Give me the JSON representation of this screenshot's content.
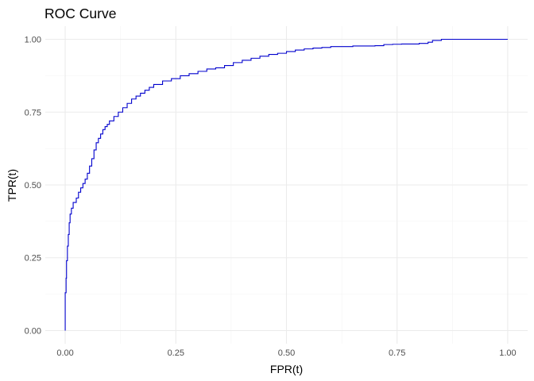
{
  "chart_data": {
    "type": "line",
    "title": "ROC Curve",
    "xlabel": "FPR(t)",
    "ylabel": "TPR(t)",
    "xlim": [
      0,
      1
    ],
    "ylim": [
      0,
      1
    ],
    "x_ticks": [
      "0.00",
      "0.25",
      "0.50",
      "0.75",
      "1.00"
    ],
    "y_ticks": [
      "0.00",
      "0.25",
      "0.50",
      "0.75",
      "1.00"
    ],
    "grid": true,
    "legend": "none",
    "line_color": "#0000cd",
    "series": [
      {
        "points": [
          [
            0.0,
            0.0
          ],
          [
            0.0,
            0.06
          ],
          [
            0.002,
            0.13
          ],
          [
            0.003,
            0.18
          ],
          [
            0.005,
            0.24
          ],
          [
            0.007,
            0.29
          ],
          [
            0.009,
            0.33
          ],
          [
            0.011,
            0.37
          ],
          [
            0.014,
            0.4
          ],
          [
            0.018,
            0.42
          ],
          [
            0.025,
            0.44
          ],
          [
            0.03,
            0.455
          ],
          [
            0.035,
            0.475
          ],
          [
            0.04,
            0.49
          ],
          [
            0.045,
            0.505
          ],
          [
            0.05,
            0.52
          ],
          [
            0.055,
            0.54
          ],
          [
            0.06,
            0.565
          ],
          [
            0.065,
            0.59
          ],
          [
            0.07,
            0.62
          ],
          [
            0.075,
            0.645
          ],
          [
            0.08,
            0.66
          ],
          [
            0.085,
            0.675
          ],
          [
            0.09,
            0.69
          ],
          [
            0.095,
            0.7
          ],
          [
            0.1,
            0.708
          ],
          [
            0.11,
            0.72
          ],
          [
            0.12,
            0.735
          ],
          [
            0.13,
            0.75
          ],
          [
            0.14,
            0.765
          ],
          [
            0.15,
            0.78
          ],
          [
            0.16,
            0.795
          ],
          [
            0.17,
            0.805
          ],
          [
            0.18,
            0.815
          ],
          [
            0.19,
            0.825
          ],
          [
            0.2,
            0.835
          ],
          [
            0.22,
            0.845
          ],
          [
            0.24,
            0.857
          ],
          [
            0.26,
            0.865
          ],
          [
            0.28,
            0.875
          ],
          [
            0.3,
            0.882
          ],
          [
            0.32,
            0.89
          ],
          [
            0.34,
            0.898
          ],
          [
            0.36,
            0.902
          ],
          [
            0.38,
            0.91
          ],
          [
            0.4,
            0.92
          ],
          [
            0.42,
            0.928
          ],
          [
            0.44,
            0.935
          ],
          [
            0.46,
            0.942
          ],
          [
            0.48,
            0.948
          ],
          [
            0.5,
            0.952
          ],
          [
            0.52,
            0.958
          ],
          [
            0.54,
            0.963
          ],
          [
            0.56,
            0.967
          ],
          [
            0.58,
            0.97
          ],
          [
            0.6,
            0.972
          ],
          [
            0.65,
            0.975
          ],
          [
            0.7,
            0.977
          ],
          [
            0.72,
            0.978
          ],
          [
            0.74,
            0.982
          ],
          [
            0.76,
            0.983
          ],
          [
            0.8,
            0.984
          ],
          [
            0.82,
            0.986
          ],
          [
            0.83,
            0.99
          ],
          [
            0.85,
            0.996
          ],
          [
            0.86,
            1.0
          ],
          [
            0.9,
            1.0
          ],
          [
            1.0,
            1.0
          ]
        ]
      }
    ]
  }
}
